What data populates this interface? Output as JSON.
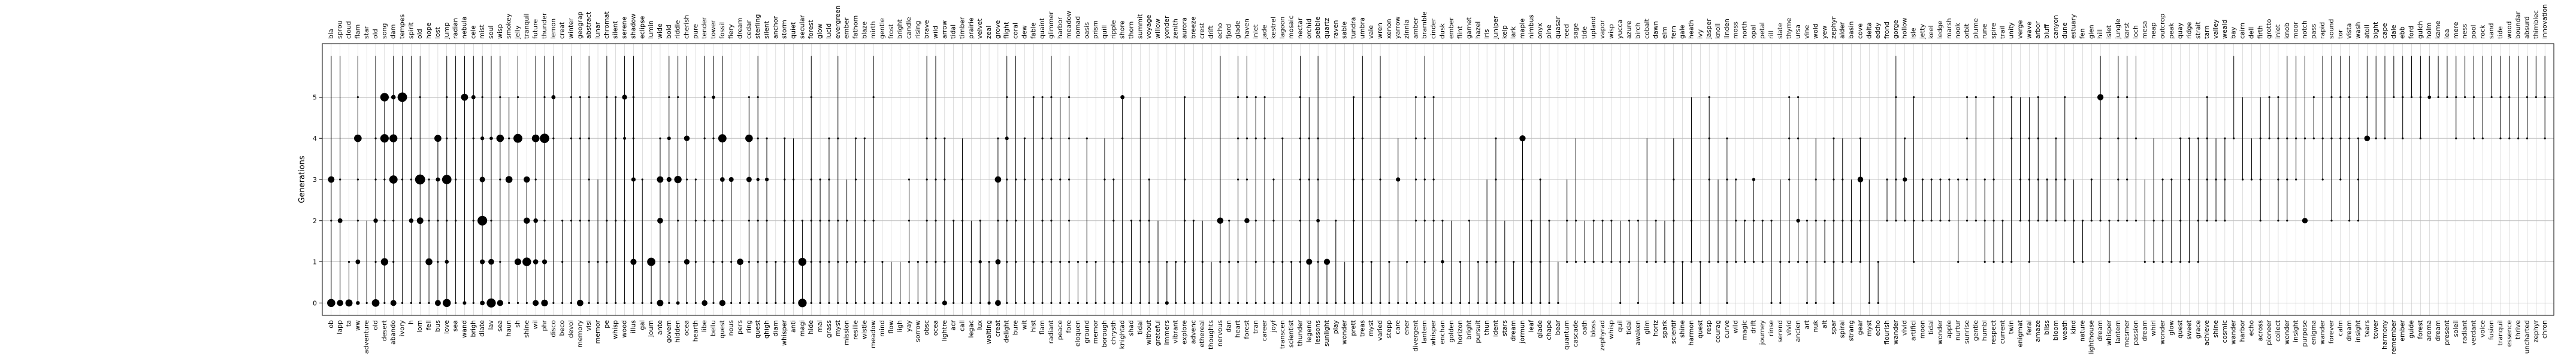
{
  "chart_data": {
    "type": "scatter",
    "title": "",
    "xlabel": "",
    "ylabel": "Generations",
    "ylim": [
      -0.3,
      6.3
    ],
    "yticks": [
      0,
      1,
      2,
      3,
      4,
      5
    ],
    "grid": true,
    "legend": "none",
    "colors": {
      "mark": "#000000",
      "grid": "#b0b0b0",
      "vline": "#bdbdbd"
    },
    "bottom_labels": [
      "ob",
      "lapp",
      "ta",
      "ww",
      "adventure",
      "old",
      "desert",
      "abando",
      "ivory",
      "h",
      "lorn",
      "fell",
      "bus",
      "love",
      "sea",
      "wand",
      "brigh",
      "dlate",
      "lav",
      "sea",
      "haun",
      "sh",
      "shine",
      "wil",
      "phr",
      "disco",
      "beco",
      "devol",
      "memory",
      "visi",
      "memor",
      "pe",
      "whisp",
      "wood",
      "illus",
      "gal",
      "journ",
      "ante",
      "govern",
      "hidden",
      "ocea",
      "hearth",
      "libe",
      "bellu",
      "quest",
      "nous",
      "pers",
      "ring",
      "quest",
      "qhigh",
      "diam",
      "whisper",
      "anti",
      "magi",
      "hide",
      "mal",
      "grass",
      "myst",
      "mission",
      "resilie",
      "wistle",
      "meadow",
      "mind",
      "flow",
      "ligh",
      "yay",
      "sorrow",
      "obsc",
      "ocea",
      "lightre",
      "acr",
      "call",
      "legac",
      "lux",
      "waiting",
      "creat",
      "delight",
      "bure",
      "wit",
      "hist",
      "flam",
      "radiant",
      "peace",
      "fore",
      "eloquen",
      "ground",
      "memor",
      "borough",
      "chrysth",
      "knightad",
      "shad",
      "tidal",
      "without",
      "grateful",
      "immers",
      "vibrant",
      "explore",
      "advenc",
      "ethereal",
      "thoughts",
      "nervous",
      "dan",
      "heart",
      "forest",
      "tran",
      "career",
      "joyf",
      "transcen",
      "scientist",
      "thunder",
      "legend",
      "lessons",
      "sunlight",
      "play",
      "wonder",
      "prett",
      "treas",
      "myst",
      "varied",
      "stepp",
      "care",
      "ener",
      "divergent",
      "lantern",
      "whisper",
      "enchan",
      "golden",
      "horizon",
      "bright",
      "pursuit",
      "thun",
      "ident",
      "stars",
      "dream",
      "jormun",
      "leaf",
      "glade",
      "chape",
      "bear",
      "quantum",
      "cascade",
      "oath",
      "bloss",
      "zephyrad",
      "whisp",
      "quil",
      "tidal",
      "awaken",
      "glim",
      "horiz",
      "spark",
      "scientif",
      "shine",
      "harmon",
      "quest",
      "resp",
      "courag",
      "curve",
      "wild",
      "magic",
      "drift",
      "journey",
      "rinse",
      "serend",
      "vivid",
      "ancien",
      "art",
      "nuk",
      "alt",
      "spar",
      "spiral",
      "strang",
      "gear",
      "myst",
      "echo",
      "flourish",
      "wander",
      "vivid",
      "artifici",
      "moon",
      "tidal",
      "wonder",
      "apple",
      "nurtur",
      "sunrise",
      "gentle",
      "humbl",
      "respect",
      "current",
      "twin",
      "enigmat",
      "feral",
      "amaze",
      "bliss",
      "bloom",
      "weath",
      "kind",
      "nature",
      "lighthouse",
      "dream",
      "whisper",
      "lantern",
      "mesmer",
      "passion",
      "dream",
      "whirl",
      "wonder",
      "glow",
      "quest",
      "sweet",
      "grace",
      "achieve",
      "shine",
      "cosmic",
      "wander",
      "harbor",
      "echo",
      "across",
      "pioneer",
      "collect",
      "wonder",
      "insight",
      "purpose",
      "enigma",
      "wander",
      "forever",
      "calm",
      "dream",
      "insight",
      "tears",
      "tower",
      "harmony",
      "remember",
      "ember",
      "guide",
      "forest",
      "aroma",
      "dream",
      "present",
      "soleil",
      "radiant",
      "verdant",
      "voice",
      "fusion",
      "tranquil",
      "essence",
      "thrive",
      "uncharted",
      "zephyr",
      "chron"
    ],
    "top_labels": [
      "bla",
      "sprou",
      "cloud",
      "flam",
      "star",
      "old",
      "song",
      "dam",
      "tempes",
      "spirit",
      "old",
      "hope",
      "lost",
      "jump",
      "radian",
      "nebula",
      "cele",
      "mist",
      "soul",
      "wisp",
      "smokey",
      "jelly",
      "tranquil",
      "future",
      "thunder",
      "lemon",
      "creat",
      "winter",
      "geograp",
      "abstract",
      "lunar",
      "chromat",
      "silent",
      "serene",
      "shadow",
      "eclipse",
      "lumin",
      "wide",
      "bold",
      "riddle",
      "cherish",
      "pure",
      "tender",
      "tower",
      "fossil",
      "fiery",
      "dream",
      "cedar",
      "sterling",
      "silent",
      "anchor",
      "storm",
      "quiet",
      "secular",
      "forest",
      "glow",
      "lucid",
      "evergreen",
      "ember",
      "fathom",
      "blaze",
      "mirth",
      "gentle",
      "frost",
      "bright",
      "candle",
      "rising",
      "brave",
      "wild",
      "arrow",
      "tidal",
      "timber",
      "prairie",
      "velvet",
      "zeal",
      "grove",
      "flight",
      "coral",
      "dew",
      "fable",
      "quaint",
      "glimmer",
      "harbor",
      "meadow",
      "nomad",
      "oasis",
      "prism",
      "quill",
      "ripple",
      "shore",
      "thorn",
      "summit",
      "voyage",
      "willow",
      "yonder",
      "zenith",
      "aurora",
      "breeze",
      "crest",
      "drift",
      "echo",
      "fjord",
      "glade",
      "haven",
      "inlet",
      "jade",
      "kestrel",
      "lagoon",
      "mosaic",
      "nectar",
      "orchid",
      "pebble",
      "quartz",
      "raven",
      "sable",
      "tundra",
      "umbra",
      "vale",
      "wren",
      "xenon",
      "yarrow",
      "zinnia",
      "amber",
      "bramble",
      "cinder",
      "dusk",
      "ember",
      "flint",
      "garnet",
      "hazel",
      "iris",
      "juniper",
      "kelp",
      "lark",
      "maple",
      "nimbus",
      "onyx",
      "pine",
      "quasar",
      "reed",
      "sage",
      "tide",
      "upland",
      "vapor",
      "wisp",
      "yucca",
      "azure",
      "birch",
      "cobalt",
      "dawn",
      "elm",
      "fern",
      "gale",
      "heath",
      "ivy",
      "jasper",
      "knoll",
      "linden",
      "moss",
      "north",
      "opal",
      "petal",
      "rill",
      "slate",
      "thyme",
      "ursa",
      "vine",
      "wold",
      "yew",
      "zephyr",
      "alder",
      "basin",
      "cove",
      "delta",
      "eddy",
      "frond",
      "gorge",
      "hollow",
      "isle",
      "jetty",
      "keel",
      "ledge",
      "marsh",
      "nook",
      "orbit",
      "plume",
      "rune",
      "spire",
      "trail",
      "unity",
      "verge",
      "wave",
      "arbor",
      "bluff",
      "canyon",
      "dune",
      "estuary",
      "fen",
      "glen",
      "hill",
      "islet",
      "jungle",
      "karst",
      "loch",
      "mesa",
      "neap",
      "outcrop",
      "peak",
      "quay",
      "ridge",
      "strait",
      "tarn",
      "valley",
      "weald",
      "bay",
      "cairn",
      "dell",
      "firth",
      "grotto",
      "inlet",
      "knob",
      "moor",
      "notch",
      "pass",
      "rapid",
      "sound",
      "tor",
      "vista",
      "wash",
      "atoll",
      "bight",
      "cape",
      "dale",
      "ebb",
      "ford",
      "gulch",
      "holm",
      "kame",
      "lea",
      "mere",
      "ness",
      "pool",
      "rock",
      "sand",
      "tide",
      "wood",
      "boundar",
      "absurd",
      "thimblec",
      "innovation"
    ],
    "note_pattern": "each column has a vertical span from its first generation to its last; dots mark generations where the word appears, dot size shows frequency"
  }
}
